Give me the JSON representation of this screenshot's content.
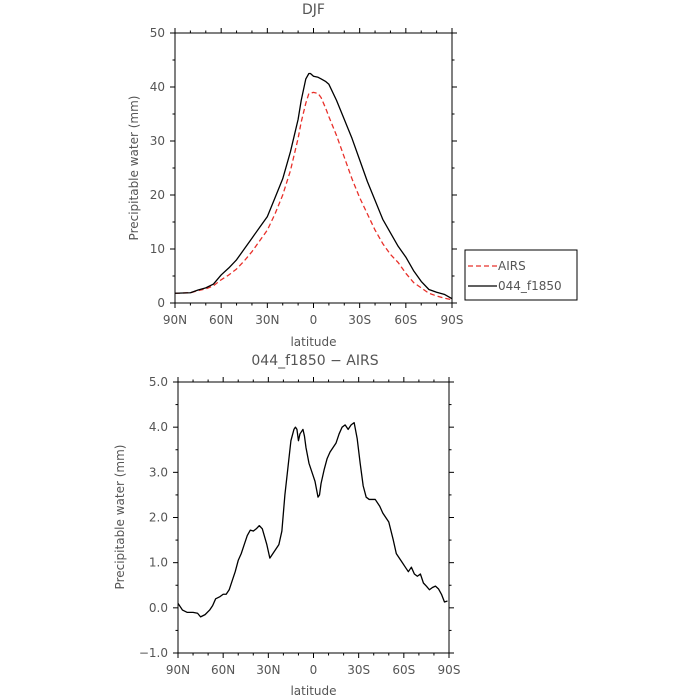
{
  "chart_data": [
    {
      "type": "line",
      "title": "DJF",
      "xlabel": "latitude",
      "ylabel": "Precipitable water  (mm)",
      "xlim": [
        90,
        -90
      ],
      "ylim": [
        0,
        50
      ],
      "xticks": [
        {
          "value": 90,
          "label": "90N"
        },
        {
          "value": 60,
          "label": "60N"
        },
        {
          "value": 30,
          "label": "30N"
        },
        {
          "value": 0,
          "label": "0"
        },
        {
          "value": -30,
          "label": "30S"
        },
        {
          "value": -60,
          "label": "60S"
        },
        {
          "value": -90,
          "label": "90S"
        }
      ],
      "yticks": [
        {
          "value": 0,
          "label": "0"
        },
        {
          "value": 10,
          "label": "10"
        },
        {
          "value": 20,
          "label": "20"
        },
        {
          "value": 30,
          "label": "30"
        },
        {
          "value": 40,
          "label": "40"
        },
        {
          "value": 50,
          "label": "50"
        }
      ],
      "legend_position": "right",
      "series": [
        {
          "name": "AIRS",
          "color": "#e8302a",
          "dash": true,
          "x": [
            90,
            80,
            75,
            70,
            65,
            60,
            55,
            50,
            45,
            40,
            35,
            30,
            25,
            20,
            15,
            10,
            8,
            5,
            3,
            0,
            -3,
            -5,
            -8,
            -10,
            -15,
            -20,
            -25,
            -30,
            -35,
            -40,
            -45,
            -50,
            -55,
            -60,
            -65,
            -70,
            -75,
            -80,
            -85,
            -90
          ],
          "y": [
            1.8,
            1.9,
            2.3,
            2.6,
            3.2,
            4.3,
            5.2,
            6.3,
            7.8,
            9.5,
            11.5,
            13.5,
            16.5,
            20.0,
            24.5,
            30.5,
            33.5,
            37.0,
            38.8,
            39.0,
            38.8,
            38.0,
            36.0,
            34.5,
            31.0,
            27.0,
            23.0,
            19.5,
            16.5,
            13.5,
            11.0,
            9.0,
            7.5,
            5.5,
            3.8,
            2.8,
            1.8,
            1.3,
            0.9,
            0.6
          ]
        },
        {
          "name": "044_f1850",
          "color": "#000000",
          "dash": false,
          "x": [
            90,
            80,
            75,
            70,
            65,
            60,
            55,
            50,
            45,
            40,
            35,
            30,
            25,
            20,
            15,
            10,
            8,
            5,
            3,
            2,
            0,
            -3,
            -5,
            -8,
            -10,
            -15,
            -20,
            -25,
            -30,
            -35,
            -40,
            -45,
            -50,
            -55,
            -60,
            -65,
            -70,
            -75,
            -80,
            -85,
            -90
          ],
          "y": [
            1.8,
            1.9,
            2.4,
            2.8,
            3.5,
            5.2,
            6.5,
            8.0,
            10.0,
            12.0,
            14.0,
            16.0,
            19.5,
            23.0,
            28.0,
            34.0,
            37.5,
            41.5,
            42.5,
            42.5,
            42.0,
            41.8,
            41.5,
            41.0,
            40.5,
            37.5,
            34.0,
            30.5,
            26.5,
            22.5,
            19.0,
            15.5,
            13.0,
            10.5,
            8.5,
            6.0,
            4.0,
            2.5,
            2.0,
            1.6,
            0.8
          ]
        }
      ]
    },
    {
      "type": "line",
      "title": "044_f1850 − AIRS",
      "xlabel": "latitude",
      "ylabel": "Precipitable water (mm)",
      "xlim": [
        90,
        -90
      ],
      "ylim": [
        -1.0,
        5.0
      ],
      "xticks": [
        {
          "value": 90,
          "label": "90N"
        },
        {
          "value": 60,
          "label": "60N"
        },
        {
          "value": 30,
          "label": "30N"
        },
        {
          "value": 0,
          "label": "0"
        },
        {
          "value": -30,
          "label": "30S"
        },
        {
          "value": -60,
          "label": "60S"
        },
        {
          "value": -90,
          "label": "90S"
        }
      ],
      "yticks": [
        {
          "value": -1.0,
          "label": "−1.0"
        },
        {
          "value": 0.0,
          "label": "0.0"
        },
        {
          "value": 1.0,
          "label": "1.0"
        },
        {
          "value": 2.0,
          "label": "2.0"
        },
        {
          "value": 3.0,
          "label": "3.0"
        },
        {
          "value": 4.0,
          "label": "4.0"
        },
        {
          "value": 5.0,
          "label": "5.0"
        }
      ],
      "series": [
        {
          "color": "#000000",
          "dash": false,
          "x": [
            90,
            87,
            84,
            80,
            77,
            75,
            72,
            69,
            67,
            65,
            62,
            60,
            58,
            56,
            54,
            52,
            50,
            48,
            46,
            44,
            42,
            40,
            38,
            36,
            34,
            31,
            29,
            27,
            25,
            23,
            21,
            19,
            17,
            15,
            13,
            12,
            11,
            10,
            9,
            8,
            7,
            6,
            5,
            3,
            1,
            0,
            -1,
            -3,
            -4,
            -5,
            -7,
            -9,
            -11,
            -13,
            -15,
            -17,
            -19,
            -21,
            -23,
            -25,
            -27,
            -29,
            -31,
            -33,
            -35,
            -37,
            -39,
            -41,
            -44,
            -46,
            -48,
            -50,
            -53,
            -55,
            -57,
            -59,
            -61,
            -63,
            -65,
            -67,
            -69,
            -71,
            -73,
            -75,
            -77,
            -79,
            -81,
            -83,
            -85,
            -87,
            -89
          ],
          "y": [
            0.1,
            -0.05,
            -0.1,
            -0.1,
            -0.12,
            -0.2,
            -0.15,
            -0.05,
            0.05,
            0.2,
            0.25,
            0.3,
            0.3,
            0.4,
            0.6,
            0.8,
            1.05,
            1.2,
            1.4,
            1.6,
            1.72,
            1.7,
            1.75,
            1.82,
            1.75,
            1.4,
            1.1,
            1.2,
            1.3,
            1.4,
            1.7,
            2.5,
            3.1,
            3.7,
            3.95,
            4.0,
            3.95,
            3.7,
            3.85,
            3.9,
            3.95,
            3.8,
            3.55,
            3.2,
            3.0,
            2.9,
            2.8,
            2.45,
            2.5,
            2.75,
            3.05,
            3.3,
            3.45,
            3.55,
            3.65,
            3.85,
            4.0,
            4.05,
            3.95,
            4.05,
            4.1,
            3.75,
            3.2,
            2.7,
            2.45,
            2.4,
            2.4,
            2.4,
            2.25,
            2.1,
            2.0,
            1.9,
            1.5,
            1.2,
            1.1,
            1.0,
            0.9,
            0.8,
            0.9,
            0.75,
            0.7,
            0.75,
            0.55,
            0.48,
            0.4,
            0.45,
            0.48,
            0.42,
            0.3,
            0.13,
            0.15
          ]
        }
      ]
    }
  ]
}
